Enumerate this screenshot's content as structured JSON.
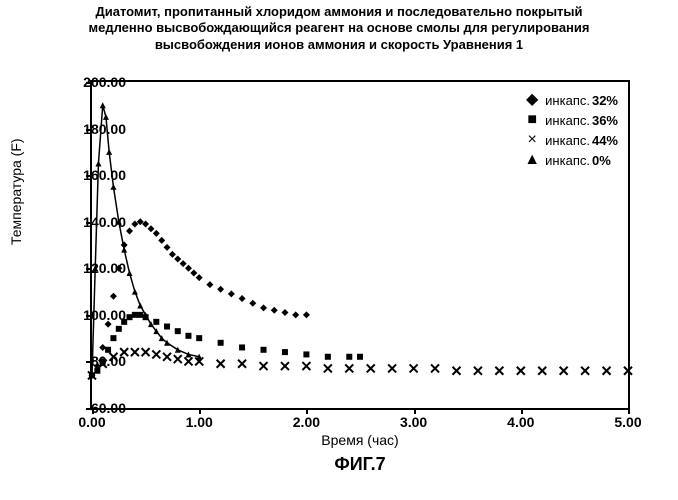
{
  "title_lines": [
    "Диатомит, пропитанный хлоридом аммония и последовательно покрытый",
    "медленно высвобождающийся реагент на основе смолы для регулирования",
    "высвобождения ионов аммония и скорость Уравнения 1"
  ],
  "ylabel": "Температура (F)",
  "xlabel": "Время (час)",
  "figure_label": "ФИГ.7",
  "chart": {
    "type": "line-scatter",
    "xlim": [
      0,
      5
    ],
    "ylim": [
      60,
      200
    ],
    "xticks": [
      0.0,
      1.0,
      2.0,
      3.0,
      4.0,
      5.0
    ],
    "yticks": [
      60.0,
      80.0,
      100.0,
      120.0,
      140.0,
      160.0,
      180.0,
      200.0
    ],
    "xtick_labels": [
      "0.00",
      "1.00",
      "2.00",
      "3.00",
      "4.00",
      "5.00"
    ],
    "ytick_labels": [
      "60.00",
      "80.00",
      "100.00",
      "120.00",
      "140.00",
      "160.00",
      "180.00",
      "200.00"
    ],
    "background_color": "#ffffff",
    "axis_color": "#000000",
    "series": [
      {
        "name": "инкапс.",
        "pct": "32%",
        "marker": "diamond",
        "glyph": "◆",
        "color": "#000000",
        "size": 7,
        "x": [
          0.0,
          0.05,
          0.1,
          0.15,
          0.2,
          0.25,
          0.3,
          0.35,
          0.4,
          0.45,
          0.5,
          0.55,
          0.6,
          0.65,
          0.7,
          0.75,
          0.8,
          0.85,
          0.9,
          0.95,
          1.0,
          1.1,
          1.2,
          1.3,
          1.4,
          1.5,
          1.6,
          1.7,
          1.8,
          1.9,
          2.0
        ],
        "y": [
          74,
          78,
          86,
          96,
          108,
          120,
          130,
          136,
          139,
          140,
          139,
          137,
          135,
          132,
          129,
          126,
          124,
          122,
          120,
          118,
          116,
          113,
          111,
          109,
          107,
          105,
          103,
          102,
          101,
          100,
          100
        ]
      },
      {
        "name": "инкапс.",
        "pct": "36%",
        "marker": "square",
        "glyph": "■",
        "color": "#000000",
        "size": 6,
        "x": [
          0.0,
          0.05,
          0.1,
          0.15,
          0.2,
          0.25,
          0.3,
          0.35,
          0.4,
          0.45,
          0.5,
          0.6,
          0.7,
          0.8,
          0.9,
          1.0,
          1.2,
          1.4,
          1.6,
          1.8,
          2.0,
          2.2,
          2.4,
          2.5
        ],
        "y": [
          74,
          76,
          80,
          85,
          90,
          94,
          97,
          99,
          100,
          100,
          99,
          97,
          95,
          93,
          91,
          90,
          88,
          86,
          85,
          84,
          83,
          82,
          82,
          82
        ]
      },
      {
        "name": "инкапс.",
        "pct": "44%",
        "marker": "x",
        "glyph": "×",
        "color": "#000000",
        "size": 8,
        "x": [
          0.0,
          0.1,
          0.2,
          0.3,
          0.4,
          0.5,
          0.6,
          0.7,
          0.8,
          0.9,
          1.0,
          1.2,
          1.4,
          1.6,
          1.8,
          2.0,
          2.2,
          2.4,
          2.6,
          2.8,
          3.0,
          3.2,
          3.4,
          3.6,
          3.8,
          4.0,
          4.2,
          4.4,
          4.6,
          4.8,
          5.0
        ],
        "y": [
          74,
          79,
          82,
          84,
          84,
          84,
          83,
          82,
          81,
          80,
          80,
          79,
          79,
          78,
          78,
          78,
          77,
          77,
          77,
          77,
          77,
          77,
          76,
          76,
          76,
          76,
          76,
          76,
          76,
          76,
          76
        ]
      },
      {
        "name": "инкапс.",
        "pct": "0%",
        "marker": "triangle",
        "glyph": "▲",
        "color": "#000000",
        "size": 6,
        "line": true,
        "x": [
          0.0,
          0.03,
          0.06,
          0.1,
          0.13,
          0.16,
          0.2,
          0.25,
          0.3,
          0.35,
          0.4,
          0.45,
          0.5,
          0.55,
          0.6,
          0.65,
          0.7,
          0.8,
          0.9,
          1.0
        ],
        "y": [
          74,
          120,
          165,
          190,
          185,
          170,
          155,
          140,
          128,
          118,
          110,
          104,
          100,
          96,
          93,
          90,
          88,
          85,
          83,
          82
        ]
      }
    ]
  }
}
